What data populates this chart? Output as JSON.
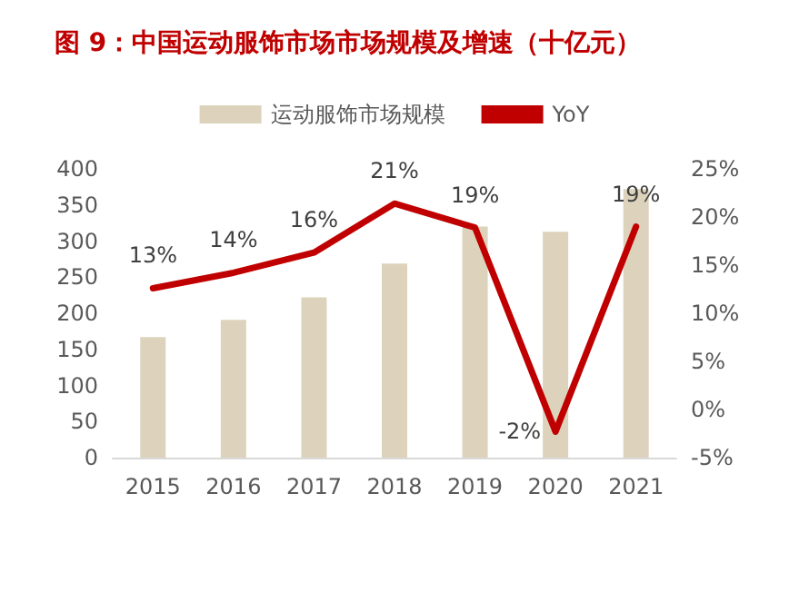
{
  "chart_data": {
    "type": "bar",
    "title": "图 9：中国运动服饰市场市场规模及增速（十亿元）",
    "categories": [
      "2015",
      "2016",
      "2017",
      "2018",
      "2019",
      "2020",
      "2021"
    ],
    "series": [
      {
        "name": "运动服饰市场规模",
        "color": "#ddd3bc",
        "values": [
          167,
          191,
          222,
          269,
          320,
          313,
          372
        ]
      },
      {
        "name": "YoY",
        "type": "line",
        "axis": "y2",
        "color": "#c00000",
        "values": [
          12.6,
          14.2,
          16.3,
          21.4,
          18.9,
          -2.3,
          19.0
        ],
        "value_labels": [
          "13%",
          "14%",
          "16%",
          "21%",
          "19%",
          "-2%",
          "19%"
        ]
      }
    ],
    "ylim": [
      0,
      400
    ],
    "yticks": [
      0,
      50,
      100,
      150,
      200,
      250,
      300,
      350,
      400
    ],
    "y2lim": [
      -5,
      25
    ],
    "y2ticks": [
      {
        "value": -5,
        "label": "-5%"
      },
      {
        "value": 0,
        "label": "0%"
      },
      {
        "value": 5,
        "label": "5%"
      },
      {
        "value": 10,
        "label": "10%"
      },
      {
        "value": 15,
        "label": "15%"
      },
      {
        "value": 20,
        "label": "20%"
      },
      {
        "value": 25,
        "label": "25%"
      }
    ],
    "grid": false,
    "legend": "top",
    "marker": "none",
    "line_style": "solid"
  }
}
